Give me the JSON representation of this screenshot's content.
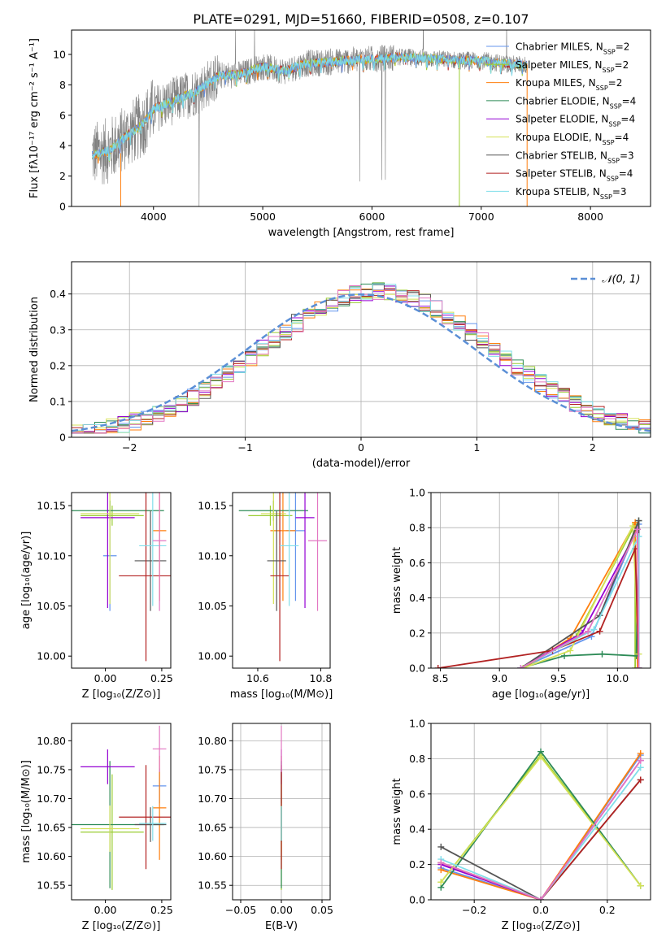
{
  "title": "PLATE=0291, MJD=51660, FIBERID=0508, z=0.107",
  "colors": {
    "chabrier_miles": "#6495ed",
    "salpeter_miles": "#9acd32",
    "kroupa_miles": "#ff7f0e",
    "chabrier_elodie": "#2e8b57",
    "salpeter_elodie": "#9400d3",
    "kroupa_elodie": "#d4e157",
    "chabrier_stelib": "#555555",
    "salpeter_stelib": "#b22222",
    "kroupa_stelib": "#80deea",
    "data": "#808080",
    "pink": "#e377c2",
    "normal": "#5b8fd6"
  },
  "legend_spectrum": [
    {
      "label": "Chabrier MILES, N",
      "sub": "SSP",
      "rest": "=2",
      "color": "#6495ed"
    },
    {
      "label": "Salpeter MILES, N",
      "sub": "SSP",
      "rest": "=2",
      "color": "#9acd32"
    },
    {
      "label": "Kroupa MILES, N",
      "sub": "SSP",
      "rest": "=2",
      "color": "#ff7f0e"
    },
    {
      "label": "Chabrier ELODIE, N",
      "sub": "SSP",
      "rest": "=4",
      "color": "#2e8b57"
    },
    {
      "label": "Salpeter ELODIE, N",
      "sub": "SSP",
      "rest": "=4",
      "color": "#9400d3"
    },
    {
      "label": "Kroupa ELODIE, N",
      "sub": "SSP",
      "rest": "=4",
      "color": "#d4e157"
    },
    {
      "label": "Chabrier STELIB, N",
      "sub": "SSP",
      "rest": "=3",
      "color": "#555555"
    },
    {
      "label": "Salpeter STELIB, N",
      "sub": "SSP",
      "rest": "=4",
      "color": "#b22222"
    },
    {
      "label": "Kroupa STELIB, N",
      "sub": "SSP",
      "rest": "=3",
      "color": "#80deea"
    }
  ],
  "chart_data": [
    {
      "id": "spectrum",
      "type": "line",
      "xlabel": "wavelength [Angstrom, rest frame]",
      "ylabel": "Flux [fλ10⁻¹⁷ erg cm⁻² s⁻¹ A⁻¹]",
      "xlim": [
        3250,
        8550
      ],
      "ylim": [
        0,
        11.6
      ],
      "xticks": [
        4000,
        5000,
        6000,
        7000,
        8000
      ],
      "yticks": [
        0,
        2,
        4,
        6,
        8,
        10
      ],
      "model_trend": [
        [
          3440,
          3.4
        ],
        [
          3600,
          3.7
        ],
        [
          3750,
          4.6
        ],
        [
          3900,
          5.4
        ],
        [
          4000,
          6.4
        ],
        [
          4200,
          7.0
        ],
        [
          4400,
          7.6
        ],
        [
          4600,
          8.6
        ],
        [
          4800,
          8.7
        ],
        [
          5000,
          9.2
        ],
        [
          5200,
          8.9
        ],
        [
          5400,
          9.4
        ],
        [
          5600,
          9.5
        ],
        [
          5800,
          9.6
        ],
        [
          6000,
          9.7
        ],
        [
          6200,
          9.8
        ],
        [
          6400,
          9.8
        ],
        [
          6600,
          9.7
        ],
        [
          6800,
          9.6
        ],
        [
          7000,
          9.6
        ],
        [
          7200,
          9.4
        ],
        [
          7400,
          9.3
        ]
      ]
    },
    {
      "id": "residuals",
      "type": "histogram",
      "xlabel": "(data-model)/error",
      "ylabel": "Normed distribution",
      "xlim": [
        -2.5,
        2.5
      ],
      "ylim": [
        0,
        0.49
      ],
      "xticks": [
        -2,
        -1,
        0,
        1,
        2
      ],
      "yticks": [
        0.0,
        0.1,
        0.2,
        0.3,
        0.4
      ],
      "grid": true,
      "bin_width": 0.1,
      "reference_curve": {
        "label": "𝒩(0, 1)",
        "mean": 0,
        "sigma": 1
      }
    },
    {
      "id": "age-vs-Z",
      "type": "scatter",
      "xlabel": "Z [log₁₀(Z/Z⊙)]",
      "ylabel": "age  [log₁₀(age/yr)]",
      "xlim": [
        -0.15,
        0.29
      ],
      "ylim": [
        9.988,
        10.163
      ],
      "xticks": [
        0.0,
        0.25
      ],
      "xticklabels": [
        "0.00",
        "0.25"
      ],
      "yticks": [
        10.0,
        10.05,
        10.1,
        10.15
      ],
      "yticklabels": [
        "10.00",
        "10.05",
        "10.10",
        "10.15"
      ],
      "points": [
        {
          "x": 0.02,
          "y": 10.1,
          "xerr": 0.03,
          "yerr": 0.055,
          "color": "#6495ed"
        },
        {
          "x": 0.03,
          "y": 10.14,
          "xerr": 0.14,
          "yerr": 0.01,
          "color": "#9acd32"
        },
        {
          "x": 0.24,
          "y": 10.125,
          "xerr": 0.03,
          "yerr": 0.07,
          "color": "#ff7f0e"
        },
        {
          "x": 0.02,
          "y": 10.145,
          "xerr": 0.24,
          "yerr": 0.01,
          "color": "#2e8b57"
        },
        {
          "x": 0.01,
          "y": 10.138,
          "xerr": 0.12,
          "yerr": 0.09,
          "color": "#9400d3"
        },
        {
          "x": 0.02,
          "y": 10.142,
          "xerr": 0.13,
          "yerr": 0.09,
          "color": "#d4e157"
        },
        {
          "x": 0.2,
          "y": 10.095,
          "xerr": 0.07,
          "yerr": 0.05,
          "color": "#555555"
        },
        {
          "x": 0.18,
          "y": 10.08,
          "xerr": 0.12,
          "yerr": 0.085,
          "color": "#b22222"
        },
        {
          "x": 0.21,
          "y": 10.11,
          "xerr": 0.06,
          "yerr": 0.06,
          "color": "#80deea"
        },
        {
          "x": 0.24,
          "y": 10.115,
          "xerr": 0.03,
          "yerr": 0.07,
          "color": "#e377c2"
        }
      ]
    },
    {
      "id": "age-vs-mass",
      "type": "scatter",
      "xlabel": "mass [log₁₀(M/M⊙)]",
      "ylabel": "",
      "xlim": [
        10.52,
        10.83
      ],
      "ylim": [
        9.988,
        10.163
      ],
      "xticks": [
        10.6,
        10.8
      ],
      "xticklabels": [
        "10.6",
        "10.8"
      ],
      "yticks": [
        10.0,
        10.05,
        10.1,
        10.15
      ],
      "yticklabels": [
        "10.00",
        "10.05",
        "10.10",
        "10.15"
      ],
      "points": [
        {
          "x": 10.72,
          "y": 10.125,
          "xerr": 0.03,
          "yerr": 0.07,
          "color": "#6495ed"
        },
        {
          "x": 10.64,
          "y": 10.14,
          "xerr": 0.07,
          "yerr": 0.01,
          "color": "#9acd32"
        },
        {
          "x": 10.68,
          "y": 10.125,
          "xerr": 0.04,
          "yerr": 0.07,
          "color": "#ff7f0e"
        },
        {
          "x": 10.65,
          "y": 10.145,
          "xerr": 0.11,
          "yerr": 0.01,
          "color": "#2e8b57"
        },
        {
          "x": 10.75,
          "y": 10.138,
          "xerr": 0.03,
          "yerr": 0.09,
          "color": "#9400d3"
        },
        {
          "x": 10.65,
          "y": 10.142,
          "xerr": 0.04,
          "yerr": 0.09,
          "color": "#d4e157"
        },
        {
          "x": 10.66,
          "y": 10.095,
          "xerr": 0.03,
          "yerr": 0.05,
          "color": "#555555"
        },
        {
          "x": 10.67,
          "y": 10.08,
          "xerr": 0.03,
          "yerr": 0.085,
          "color": "#b22222"
        },
        {
          "x": 10.7,
          "y": 10.11,
          "xerr": 0.03,
          "yerr": 0.06,
          "color": "#80deea"
        },
        {
          "x": 10.79,
          "y": 10.115,
          "xerr": 0.03,
          "yerr": 0.07,
          "color": "#e377c2"
        }
      ]
    },
    {
      "id": "massweight-vs-age",
      "type": "line",
      "xlabel": "age  [log₁₀(age/yr)]",
      "ylabel": "mass weight",
      "xlim": [
        8.42,
        10.28
      ],
      "ylim": [
        0,
        1.0
      ],
      "xticks": [
        8.5,
        9.0,
        9.5,
        10.0
      ],
      "xticklabels": [
        "8.5",
        "9.0",
        "9.5",
        "10.0"
      ],
      "yticks": [
        0.0,
        0.2,
        0.4,
        0.6,
        0.8,
        1.0
      ],
      "yticklabels": [
        "0.0",
        "0.2",
        "0.4",
        "0.6",
        "0.8",
        "1.0"
      ],
      "grid": true,
      "series": [
        {
          "color": "#6495ed",
          "x": [
            9.18,
            9.78,
            10.18,
            10.18
          ],
          "y": [
            0.0,
            0.18,
            0.82,
            0.0
          ]
        },
        {
          "color": "#9acd32",
          "x": [
            9.2,
            9.65,
            10.15,
            10.15
          ],
          "y": [
            0.0,
            0.18,
            0.82,
            0.0
          ]
        },
        {
          "color": "#ff7f0e",
          "x": [
            9.2,
            9.6,
            10.15,
            10.17
          ],
          "y": [
            0.0,
            0.17,
            0.83,
            0.0
          ]
        },
        {
          "color": "#2e8b57",
          "x": [
            9.18,
            9.55,
            9.87,
            10.16,
            10.18
          ],
          "y": [
            0.0,
            0.07,
            0.08,
            0.07,
            0.84
          ]
        },
        {
          "color": "#9400d3",
          "x": [
            9.18,
            9.7,
            10.17,
            10.18
          ],
          "y": [
            0.0,
            0.2,
            0.79,
            0.0
          ]
        },
        {
          "color": "#d4e157",
          "x": [
            9.2,
            9.6,
            10.13,
            10.18
          ],
          "y": [
            0.0,
            0.1,
            0.81,
            0.08
          ]
        },
        {
          "color": "#555555",
          "x": [
            9.18,
            9.85,
            10.18,
            10.18
          ],
          "y": [
            0.0,
            0.3,
            0.84,
            0.0
          ]
        },
        {
          "color": "#b22222",
          "x": [
            8.48,
            9.45,
            9.85,
            10.15,
            10.18
          ],
          "y": [
            0.0,
            0.1,
            0.21,
            0.68,
            0.0
          ]
        },
        {
          "color": "#80deea",
          "x": [
            9.18,
            9.8,
            10.18,
            10.18
          ],
          "y": [
            0.0,
            0.22,
            0.75,
            0.0
          ]
        },
        {
          "color": "#e377c2",
          "x": [
            9.18,
            9.75,
            10.17,
            10.18
          ],
          "y": [
            0.0,
            0.21,
            0.79,
            0.0
          ]
        }
      ]
    },
    {
      "id": "mass-vs-Z",
      "type": "scatter",
      "xlabel": "Z [log₁₀(Z/Z⊙)]",
      "ylabel": "mass [log₁₀(M/M⊙)]",
      "xlim": [
        -0.15,
        0.29
      ],
      "ylim": [
        10.525,
        10.83
      ],
      "xticks": [
        0.0,
        0.25
      ],
      "xticklabels": [
        "0.00",
        "0.25"
      ],
      "yticks": [
        10.55,
        10.6,
        10.65,
        10.7,
        10.75,
        10.8
      ],
      "yticklabels": [
        "10.55",
        "10.60",
        "10.65",
        "10.70",
        "10.75",
        "10.80"
      ],
      "points": [
        {
          "x": 0.24,
          "y": 10.722,
          "xerr": 0.03,
          "yerr": 0.03,
          "color": "#6495ed"
        },
        {
          "x": 0.03,
          "y": 10.642,
          "xerr": 0.14,
          "yerr": 0.1,
          "color": "#9acd32"
        },
        {
          "x": 0.24,
          "y": 10.684,
          "xerr": 0.03,
          "yerr": 0.09,
          "color": "#ff7f0e"
        },
        {
          "x": 0.02,
          "y": 10.655,
          "xerr": 0.24,
          "yerr": 0.11,
          "color": "#2e8b57"
        },
        {
          "x": 0.01,
          "y": 10.755,
          "xerr": 0.12,
          "yerr": 0.03,
          "color": "#9400d3"
        },
        {
          "x": 0.02,
          "y": 10.648,
          "xerr": 0.13,
          "yerr": 0.04,
          "color": "#d4e157"
        },
        {
          "x": 0.2,
          "y": 10.655,
          "xerr": 0.07,
          "yerr": 0.03,
          "color": "#555555"
        },
        {
          "x": 0.18,
          "y": 10.668,
          "xerr": 0.12,
          "yerr": 0.09,
          "color": "#b22222"
        },
        {
          "x": 0.21,
          "y": 10.657,
          "xerr": 0.06,
          "yerr": 0.03,
          "color": "#80deea"
        },
        {
          "x": 0.24,
          "y": 10.786,
          "xerr": 0.03,
          "yerr": 0.04,
          "color": "#e377c2"
        }
      ]
    },
    {
      "id": "mass-vs-ebv",
      "type": "scatter",
      "xlabel": "E(B-V)",
      "ylabel": "",
      "xlim": [
        -0.06,
        0.06
      ],
      "ylim": [
        10.525,
        10.83
      ],
      "xticks": [
        -0.05,
        0.0,
        0.05
      ],
      "xticklabels": [
        "−0.05",
        "0.00",
        "0.05"
      ],
      "yticks": [
        10.55,
        10.6,
        10.65,
        10.7,
        10.75,
        10.8
      ],
      "yticklabels": [
        "10.55",
        "10.60",
        "10.65",
        "10.70",
        "10.75",
        "10.80"
      ],
      "grid": true,
      "points": [
        {
          "x": 0.0,
          "y": 10.722,
          "xerr": 0.0,
          "yerr": 0.03,
          "color": "#6495ed"
        },
        {
          "x": 0.0,
          "y": 10.642,
          "xerr": 0.0,
          "yerr": 0.1,
          "color": "#9acd32"
        },
        {
          "x": 0.0,
          "y": 10.684,
          "xerr": 0.0,
          "yerr": 0.09,
          "color": "#ff7f0e"
        },
        {
          "x": 0.0,
          "y": 10.655,
          "xerr": 0.0,
          "yerr": 0.11,
          "color": "#2e8b57"
        },
        {
          "x": 0.0,
          "y": 10.755,
          "xerr": 0.0,
          "yerr": 0.03,
          "color": "#9400d3"
        },
        {
          "x": 0.0,
          "y": 10.648,
          "xerr": 0.0,
          "yerr": 0.04,
          "color": "#d4e157"
        },
        {
          "x": 0.0,
          "y": 10.655,
          "xerr": 0.0,
          "yerr": 0.03,
          "color": "#555555"
        },
        {
          "x": 0.0,
          "y": 10.668,
          "xerr": 0.0,
          "yerr": 0.09,
          "color": "#b22222"
        },
        {
          "x": 0.0,
          "y": 10.657,
          "xerr": 0.0,
          "yerr": 0.03,
          "color": "#80deea"
        },
        {
          "x": 0.0,
          "y": 10.786,
          "xerr": 0.0,
          "yerr": 0.04,
          "color": "#e377c2"
        }
      ]
    },
    {
      "id": "massweight-vs-Z",
      "type": "line",
      "xlabel": "Z [log₁₀(Z/Z⊙)]",
      "ylabel": "mass weight",
      "xlim": [
        -0.33,
        0.33
      ],
      "ylim": [
        0,
        1.0
      ],
      "xticks": [
        -0.2,
        0.0,
        0.2
      ],
      "xticklabels": [
        "−0.2",
        "0.0",
        "0.2"
      ],
      "yticks": [
        0.0,
        0.2,
        0.4,
        0.6,
        0.8,
        1.0
      ],
      "yticklabels": [
        "0.0",
        "0.2",
        "0.4",
        "0.6",
        "0.8",
        "1.0"
      ],
      "grid": true,
      "series": [
        {
          "color": "#6495ed",
          "x": [
            -0.3,
            0.0,
            0.3
          ],
          "y": [
            0.18,
            0.0,
            0.82
          ]
        },
        {
          "color": "#9acd32",
          "x": [
            -0.3,
            0.0,
            0.3
          ],
          "y": [
            0.1,
            0.82,
            0.08
          ]
        },
        {
          "color": "#ff7f0e",
          "x": [
            -0.3,
            0.0,
            0.3
          ],
          "y": [
            0.17,
            0.0,
            0.83
          ]
        },
        {
          "color": "#2e8b57",
          "x": [
            -0.3,
            0.0,
            0.3
          ],
          "y": [
            0.07,
            0.84,
            0.08
          ]
        },
        {
          "color": "#9400d3",
          "x": [
            -0.3,
            0.0,
            0.3
          ],
          "y": [
            0.2,
            0.0,
            0.79
          ]
        },
        {
          "color": "#d4e157",
          "x": [
            -0.3,
            0.0,
            0.3
          ],
          "y": [
            0.1,
            0.81,
            0.08
          ]
        },
        {
          "color": "#555555",
          "x": [
            -0.3,
            0.0,
            0.3
          ],
          "y": [
            0.3,
            0.0,
            0.68
          ]
        },
        {
          "color": "#b22222",
          "x": [
            -0.3,
            0.0,
            0.3
          ],
          "y": [
            0.21,
            0.0,
            0.68
          ]
        },
        {
          "color": "#80deea",
          "x": [
            -0.3,
            0.0,
            0.3
          ],
          "y": [
            0.23,
            0.0,
            0.75
          ]
        },
        {
          "color": "#e377c2",
          "x": [
            -0.3,
            0.0,
            0.3
          ],
          "y": [
            0.21,
            0.0,
            0.79
          ]
        }
      ]
    }
  ]
}
